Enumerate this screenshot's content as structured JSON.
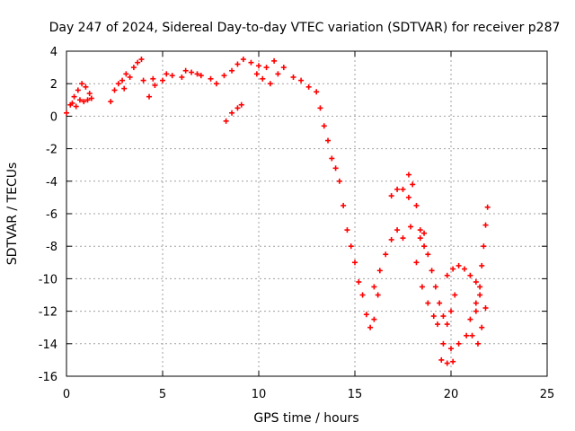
{
  "chart_data": {
    "type": "scatter",
    "title": "Day 247 of 2024, Sidereal Day-to-day VTEC variation (SDTVAR) for receiver p287",
    "xlabel": "GPS time / hours",
    "ylabel": "SDTVAR / TECUs",
    "xlim": [
      0,
      25
    ],
    "ylim": [
      -16,
      4
    ],
    "x_ticks": [
      0,
      5,
      10,
      15,
      20,
      25
    ],
    "y_ticks": [
      4,
      2,
      0,
      -2,
      -4,
      -6,
      -8,
      -10,
      -12,
      -14,
      -16
    ],
    "grid": true,
    "marker": "+",
    "color": "#ff0000",
    "series": [
      {
        "values": [
          [
            0.0,
            0.2
          ],
          [
            0.2,
            0.7
          ],
          [
            0.4,
            1.2
          ],
          [
            0.6,
            1.6
          ],
          [
            0.8,
            2.0
          ],
          [
            1.0,
            1.8
          ],
          [
            1.2,
            1.4
          ],
          [
            1.3,
            1.1
          ],
          [
            0.3,
            0.8
          ],
          [
            0.5,
            0.6
          ],
          [
            0.7,
            1.0
          ],
          [
            0.9,
            0.9
          ],
          [
            1.1,
            1.0
          ],
          [
            2.3,
            0.9
          ],
          [
            2.5,
            1.6
          ],
          [
            2.7,
            2.0
          ],
          [
            2.9,
            2.2
          ],
          [
            3.0,
            1.7
          ],
          [
            3.1,
            2.6
          ],
          [
            3.3,
            2.4
          ],
          [
            3.5,
            3.0
          ],
          [
            3.7,
            3.3
          ],
          [
            3.9,
            3.5
          ],
          [
            4.0,
            2.2
          ],
          [
            4.5,
            2.3
          ],
          [
            5.0,
            2.2
          ],
          [
            5.5,
            2.5
          ],
          [
            6.0,
            2.4
          ],
          [
            6.5,
            2.7
          ],
          [
            7.0,
            2.5
          ],
          [
            7.5,
            2.3
          ],
          [
            4.3,
            1.2
          ],
          [
            4.6,
            1.9
          ],
          [
            5.2,
            2.6
          ],
          [
            6.2,
            2.8
          ],
          [
            6.8,
            2.6
          ],
          [
            7.8,
            2.0
          ],
          [
            8.2,
            2.5
          ],
          [
            8.6,
            2.8
          ],
          [
            8.9,
            3.2
          ],
          [
            9.2,
            3.5
          ],
          [
            9.6,
            3.3
          ],
          [
            10.0,
            3.1
          ],
          [
            10.4,
            3.0
          ],
          [
            10.8,
            3.4
          ],
          [
            8.3,
            -0.3
          ],
          [
            8.6,
            0.2
          ],
          [
            8.9,
            0.5
          ],
          [
            9.1,
            0.7
          ],
          [
            9.9,
            2.6
          ],
          [
            10.2,
            2.3
          ],
          [
            10.6,
            2.0
          ],
          [
            11.0,
            2.6
          ],
          [
            11.3,
            3.0
          ],
          [
            11.8,
            2.4
          ],
          [
            12.2,
            2.2
          ],
          [
            12.6,
            1.8
          ],
          [
            13.0,
            1.5
          ],
          [
            13.2,
            0.5
          ],
          [
            13.4,
            -0.6
          ],
          [
            13.6,
            -1.5
          ],
          [
            13.8,
            -2.6
          ],
          [
            14.0,
            -3.2
          ],
          [
            14.2,
            -4.0
          ],
          [
            14.4,
            -5.5
          ],
          [
            14.6,
            -7.0
          ],
          [
            14.8,
            -8.0
          ],
          [
            15.0,
            -9.0
          ],
          [
            15.2,
            -10.2
          ],
          [
            15.4,
            -11.0
          ],
          [
            15.6,
            -12.2
          ],
          [
            15.8,
            -13.0
          ],
          [
            16.0,
            -12.5
          ],
          [
            16.2,
            -11.0
          ],
          [
            16.0,
            -10.5
          ],
          [
            16.3,
            -9.5
          ],
          [
            16.6,
            -8.5
          ],
          [
            16.9,
            -7.6
          ],
          [
            17.2,
            -7.0
          ],
          [
            17.5,
            -7.5
          ],
          [
            17.2,
            -4.5
          ],
          [
            17.5,
            -4.5
          ],
          [
            17.8,
            -5.0
          ],
          [
            17.9,
            -6.8
          ],
          [
            17.8,
            -3.6
          ],
          [
            18.0,
            -4.2
          ],
          [
            18.2,
            -5.5
          ],
          [
            18.4,
            -7.0
          ],
          [
            18.6,
            -8.0
          ],
          [
            16.9,
            -4.9
          ],
          [
            18.4,
            -7.5
          ],
          [
            18.6,
            -7.2
          ],
          [
            18.8,
            -8.5
          ],
          [
            19.0,
            -9.5
          ],
          [
            19.2,
            -10.5
          ],
          [
            19.4,
            -11.5
          ],
          [
            19.6,
            -12.3
          ],
          [
            19.8,
            -12.8
          ],
          [
            20.0,
            -12.0
          ],
          [
            20.2,
            -11.0
          ],
          [
            18.2,
            -9.0
          ],
          [
            18.5,
            -10.5
          ],
          [
            18.8,
            -11.5
          ],
          [
            19.1,
            -12.3
          ],
          [
            19.3,
            -12.8
          ],
          [
            19.8,
            -9.8
          ],
          [
            20.1,
            -9.4
          ],
          [
            20.4,
            -9.2
          ],
          [
            20.7,
            -9.4
          ],
          [
            21.0,
            -9.8
          ],
          [
            21.3,
            -10.2
          ],
          [
            19.6,
            -14.0
          ],
          [
            20.0,
            -14.3
          ],
          [
            20.4,
            -14.0
          ],
          [
            20.8,
            -13.5
          ],
          [
            21.0,
            -12.5
          ],
          [
            21.3,
            -11.5
          ],
          [
            19.5,
            -15.0
          ],
          [
            19.8,
            -15.2
          ],
          [
            20.1,
            -15.1
          ],
          [
            21.5,
            -10.5
          ],
          [
            21.6,
            -9.2
          ],
          [
            21.7,
            -8.0
          ],
          [
            21.8,
            -6.7
          ],
          [
            21.9,
            -5.6
          ],
          [
            21.1,
            -13.5
          ],
          [
            21.3,
            -12.0
          ],
          [
            21.5,
            -11.0
          ],
          [
            21.4,
            -14.0
          ],
          [
            21.6,
            -13.0
          ],
          [
            21.8,
            -11.8
          ]
        ]
      }
    ]
  }
}
